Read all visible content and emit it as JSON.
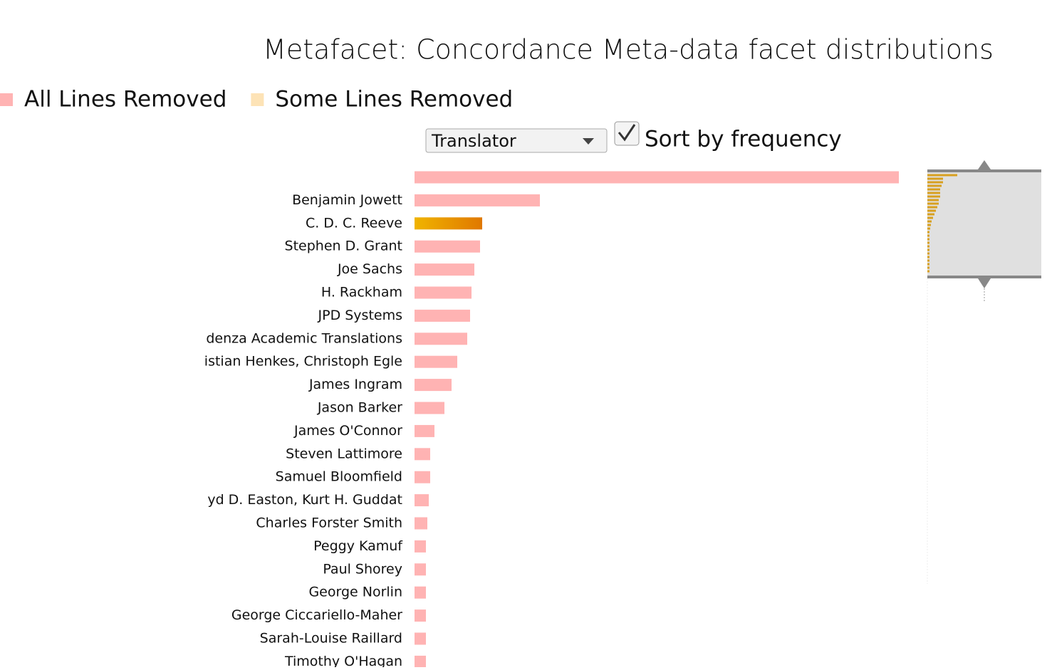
{
  "header": {
    "title": "Metafacet: Concordance Meta-data facet distributions"
  },
  "legend": {
    "items": [
      {
        "label": "All Lines Removed",
        "color": "#ffb3b3"
      },
      {
        "label": "Some Lines Removed",
        "color": "#fde3b6"
      }
    ]
  },
  "controls": {
    "select": "Translator",
    "checkbox_label": "Sort by frequency",
    "checked": true
  },
  "chart_data": {
    "type": "hbar",
    "categories": [
      null,
      "Benjamin Jowett",
      "C. D. C. Reeve",
      "Stephen D. Grant",
      "Joe Sachs",
      "H. Rackham",
      "JPD Systems",
      "denza Academic Translations",
      "istian Henkes, Christoph Egle",
      "James Ingram",
      "Jason Barker",
      "James O'Connor",
      "Steven Lattimore",
      "Samuel Bloomfield",
      "yd D. Easton, Kurt H. Guddat",
      "Charles Forster Smith",
      "Peggy Kamuf",
      "Paul Shorey",
      "George Norlin",
      "George Ciccariello-Maher",
      "Sarah-Louise Raillard",
      "Timothy O'Hagan"
    ],
    "values": [
      680,
      176,
      95,
      92,
      84,
      80,
      78,
      74,
      60,
      52,
      42,
      28,
      22,
      22,
      20,
      18,
      16,
      16,
      16,
      16,
      16,
      16
    ],
    "bar_colors": [
      "#ffb3b3",
      "#ffb3b3",
      "#e8a000",
      "#ffb3b3",
      "#ffb3b3",
      "#ffb3b3",
      "#ffb3b3",
      "#ffb3b3",
      "#ffb3b3",
      "#ffb3b3",
      "#ffb3b3",
      "#ffb3b3",
      "#ffb3b3",
      "#ffb3b3",
      "#ffb3b3",
      "#ffb3b3",
      "#ffb3b3",
      "#ffb3b3",
      "#ffb3b3",
      "#ffb3b3",
      "#ffb3b3",
      "#ffb3b3"
    ]
  }
}
